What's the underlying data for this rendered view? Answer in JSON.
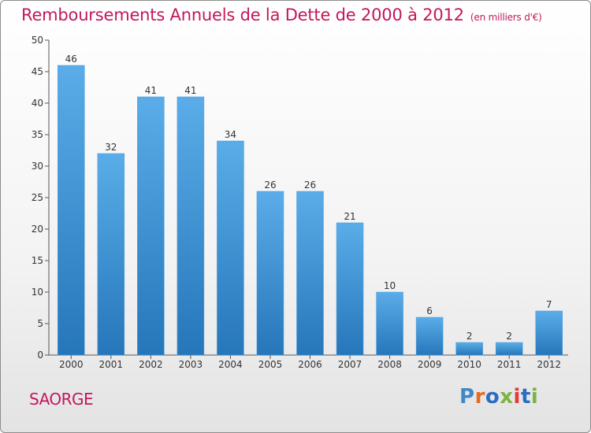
{
  "header": {
    "title": "Remboursements Annuels de la Dette de 2000 à 2012",
    "unit": "(en milliers d'€)"
  },
  "footer": {
    "commune": "SAORGE",
    "logo": "Proxiti",
    "logo_colors": [
      "#3f88c5",
      "#e86a1e",
      "#2a6dc2",
      "#7cb342",
      "#e53935",
      "#2a6dc2",
      "#7cb342"
    ]
  },
  "chart_data": {
    "type": "bar",
    "title": "Remboursements Annuels de la Dette de 2000 à 2012",
    "ylabel": "",
    "xlabel": "",
    "categories": [
      "2000",
      "2001",
      "2002",
      "2003",
      "2004",
      "2005",
      "2006",
      "2007",
      "2008",
      "2009",
      "2010",
      "2011",
      "2012"
    ],
    "values": [
      46,
      32,
      41,
      41,
      34,
      26,
      26,
      21,
      10,
      6,
      2,
      2,
      7
    ],
    "ylim": [
      0,
      50
    ],
    "yticks": [
      0,
      5,
      10,
      15,
      20,
      25,
      30,
      35,
      40,
      45,
      50
    ],
    "grid": false,
    "bar_color": "#3d8fd6"
  }
}
